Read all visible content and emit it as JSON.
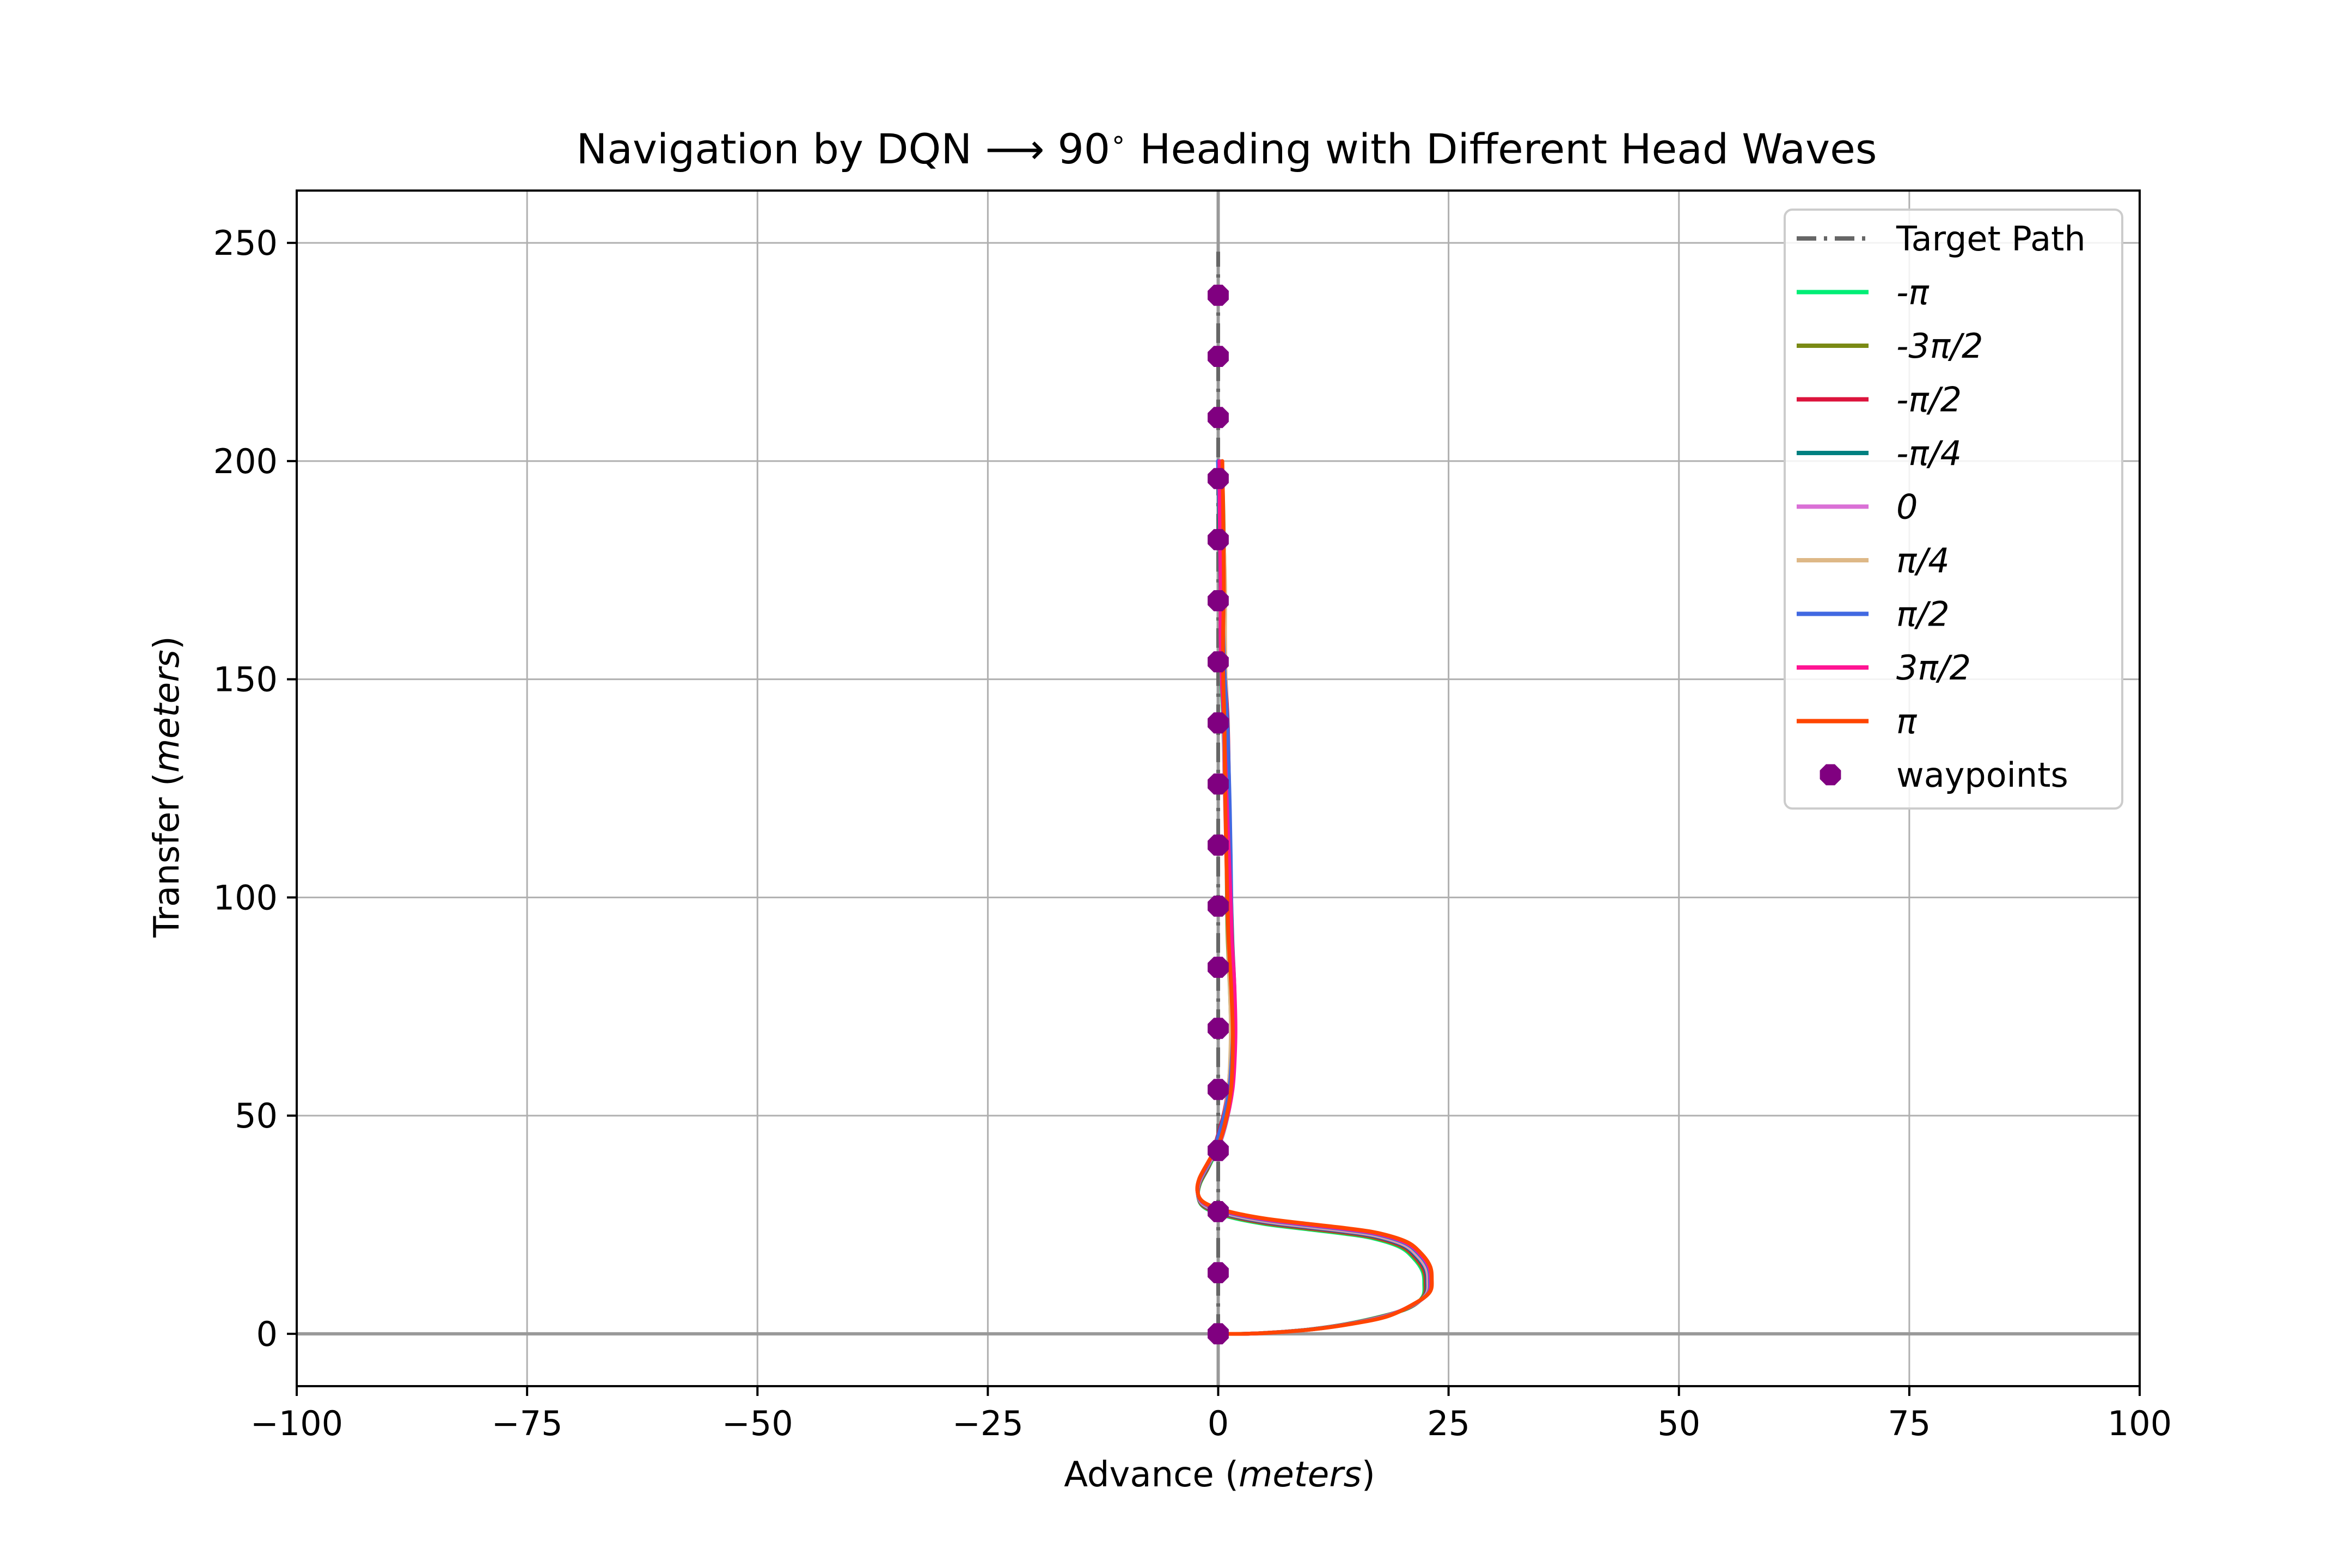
{
  "chart_data": {
    "type": "line",
    "title_prefix": "Navigation by DQN ⟶ 90",
    "title_degree": "∘",
    "title_suffix": " Heading with Different Head Waves",
    "xlabel_text": "Advance  (",
    "xlabel_unit": "meters",
    "xlabel_close": ")",
    "ylabel_text": "Transfer  (",
    "ylabel_unit": "meters",
    "ylabel_close": ")",
    "xlim": [
      -100,
      100
    ],
    "ylim": [
      -12,
      262
    ],
    "xticks": [
      -100,
      -75,
      -50,
      -25,
      0,
      25,
      50,
      75,
      100
    ],
    "xtick_labels": [
      "−100",
      "−75",
      "−50",
      "−25",
      "0",
      "25",
      "50",
      "75",
      "100"
    ],
    "yticks": [
      0,
      50,
      100,
      150,
      200,
      250
    ],
    "ytick_labels": [
      "0",
      "50",
      "100",
      "150",
      "200",
      "250"
    ],
    "grid": true,
    "legend_position": "top-right",
    "target_path": {
      "name": "Target Path",
      "color": "#666666",
      "x": [
        0,
        0
      ],
      "y": [
        0,
        248
      ]
    },
    "series": [
      {
        "name": "-π",
        "color": "#00ee76",
        "variant": 0
      },
      {
        "name": "-3π/2",
        "color": "#7a8a14",
        "variant": 1
      },
      {
        "name": "-π/2",
        "color": "#dc143c",
        "variant": 2
      },
      {
        "name": "-π/4",
        "color": "#008080",
        "variant": 3
      },
      {
        "name": "0",
        "color": "#da70d6",
        "variant": 4
      },
      {
        "name": "π/4",
        "color": "#deb887",
        "variant": 5
      },
      {
        "name": "π/2",
        "color": "#4169e1",
        "variant": 6
      },
      {
        "name": "3π/2",
        "color": "#ff1493",
        "variant": 7
      },
      {
        "name": "π",
        "color": "#ff4500",
        "variant": 8
      }
    ],
    "trajectory_base": {
      "x": [
        0,
        3,
        6,
        10,
        14,
        18,
        21,
        22.5,
        22.7,
        22.5,
        21.5,
        20,
        17,
        14,
        10,
        5,
        1,
        -1.5,
        -2.2,
        -2,
        -1,
        0,
        0.8,
        1.3,
        1.5,
        1.6,
        1.5,
        1.3,
        1.2,
        1.1,
        1.0,
        0.9,
        0.8,
        0.6,
        0.5,
        0.5,
        0.4,
        0.3,
        0.2
      ],
      "y": [
        0,
        0,
        0.3,
        1,
        2.2,
        4,
        6.5,
        9,
        12,
        15,
        18,
        20.5,
        22.5,
        23.5,
        24.5,
        25.8,
        27.5,
        29.5,
        32,
        35,
        39,
        44,
        50,
        56,
        62,
        70,
        80,
        90,
        100,
        110,
        120,
        130,
        140,
        150,
        160,
        170,
        180,
        190,
        200
      ]
    },
    "waypoints": {
      "name": "waypoints",
      "color": "#800080",
      "x": [
        0,
        0,
        0,
        0,
        0,
        0,
        0,
        0,
        0,
        0,
        0,
        0,
        0,
        0,
        0,
        0,
        0,
        0
      ],
      "y": [
        0,
        14,
        28,
        42,
        56,
        70,
        84,
        98,
        112,
        126,
        140,
        154,
        168,
        182,
        196,
        210,
        224,
        238
      ]
    }
  }
}
